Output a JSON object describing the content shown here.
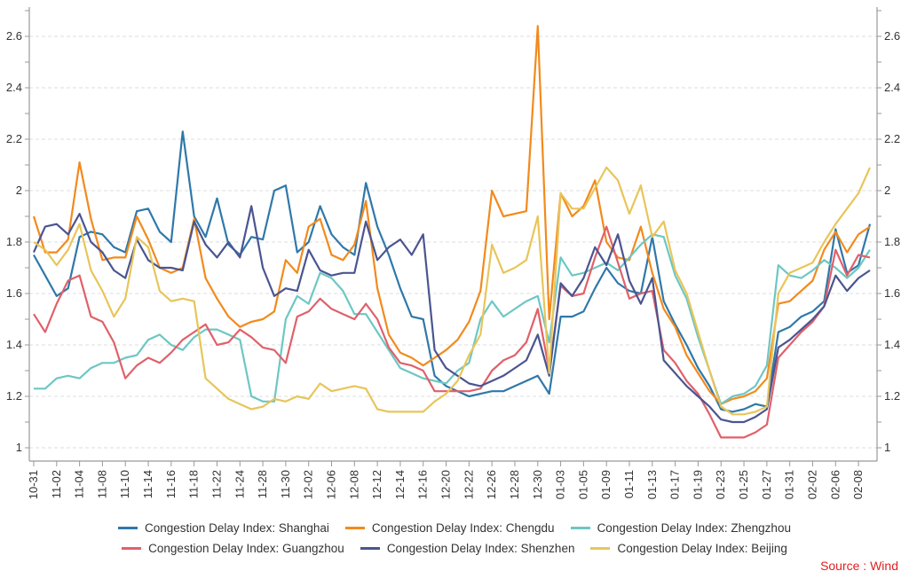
{
  "chart_data": {
    "type": "line",
    "title": "",
    "xlabel": "",
    "ylabel": "",
    "ylim": [
      1,
      2.6
    ],
    "yticks": [
      1,
      1.2,
      1.4,
      1.6,
      1.8,
      2,
      2.2,
      2.4,
      2.6
    ],
    "ytick_labels": [
      "1",
      "1.2",
      "1.4",
      "1.6",
      "1.8",
      "2",
      "2.2",
      "2.4",
      "2.6"
    ],
    "grid": "horizontal-dashed",
    "dual_y_axis": true,
    "n_points": 74,
    "x_tick_labels": [
      "10-31",
      "11-02",
      "11-04",
      "11-08",
      "11-10",
      "11-14",
      "11-16",
      "11-18",
      "11-22",
      "11-24",
      "11-28",
      "11-30",
      "12-02",
      "12-06",
      "12-08",
      "12-12",
      "12-14",
      "12-16",
      "12-20",
      "12-22",
      "12-26",
      "12-28",
      "12-30",
      "01-03",
      "01-05",
      "01-09",
      "01-11",
      "01-13",
      "01-17",
      "01-19",
      "01-23",
      "01-25",
      "01-27",
      "01-31",
      "02-02",
      "02-06",
      "02-08"
    ],
    "x_tick_every": 2,
    "legend_position": "bottom",
    "series": [
      {
        "name": "Congestion Delay Index: Shanghai",
        "color": "#2f78a9",
        "values": [
          1.75,
          1.67,
          1.59,
          1.62,
          1.82,
          1.84,
          1.83,
          1.78,
          1.76,
          1.92,
          1.93,
          1.84,
          1.8,
          2.23,
          1.9,
          1.82,
          1.97,
          1.79,
          1.75,
          1.82,
          1.81,
          2.0,
          2.02,
          1.76,
          1.8,
          1.94,
          1.83,
          1.78,
          1.75,
          2.03,
          1.86,
          1.75,
          1.62,
          1.51,
          1.5,
          1.28,
          1.24,
          1.22,
          1.2,
          1.21,
          1.22,
          1.22,
          1.24,
          1.26,
          1.28,
          1.21,
          1.51,
          1.51,
          1.53,
          1.62,
          1.7,
          1.64,
          1.61,
          1.6,
          1.82,
          1.57,
          1.48,
          1.4,
          1.31,
          1.24,
          1.15,
          1.14,
          1.15,
          1.17,
          1.16,
          1.45,
          1.47,
          1.51,
          1.53,
          1.57,
          1.85,
          1.68,
          1.71,
          1.87
        ]
      },
      {
        "name": "Congestion Delay Index: Chengdu",
        "color": "#f28a1c",
        "values": [
          1.9,
          1.76,
          1.76,
          1.81,
          2.11,
          1.89,
          1.73,
          1.74,
          1.74,
          1.9,
          1.81,
          1.7,
          1.68,
          1.7,
          1.89,
          1.66,
          1.58,
          1.51,
          1.47,
          1.49,
          1.5,
          1.53,
          1.73,
          1.68,
          1.86,
          1.89,
          1.75,
          1.73,
          1.79,
          1.96,
          1.62,
          1.44,
          1.37,
          1.35,
          1.32,
          1.35,
          1.38,
          1.42,
          1.49,
          1.61,
          2.0,
          1.9,
          1.91,
          1.92,
          2.64,
          1.5,
          1.99,
          1.9,
          1.94,
          2.04,
          1.8,
          1.74,
          1.73,
          1.86,
          1.68,
          1.54,
          1.47,
          1.36,
          1.29,
          1.22,
          1.17,
          1.19,
          1.2,
          1.22,
          1.27,
          1.56,
          1.57,
          1.61,
          1.65,
          1.77,
          1.84,
          1.76,
          1.83,
          1.86
        ]
      },
      {
        "name": "Congestion Delay Index: Zhengzhou",
        "color": "#6cc7c4",
        "values": [
          1.23,
          1.23,
          1.27,
          1.28,
          1.27,
          1.31,
          1.33,
          1.33,
          1.35,
          1.36,
          1.42,
          1.44,
          1.4,
          1.38,
          1.43,
          1.46,
          1.46,
          1.44,
          1.42,
          1.2,
          1.18,
          1.18,
          1.5,
          1.59,
          1.56,
          1.68,
          1.66,
          1.61,
          1.52,
          1.52,
          1.45,
          1.38,
          1.31,
          1.29,
          1.27,
          1.26,
          1.25,
          1.3,
          1.33,
          1.5,
          1.57,
          1.51,
          1.54,
          1.57,
          1.59,
          1.41,
          1.74,
          1.67,
          1.68,
          1.7,
          1.72,
          1.69,
          1.74,
          1.79,
          1.83,
          1.82,
          1.67,
          1.58,
          1.43,
          1.3,
          1.17,
          1.2,
          1.21,
          1.24,
          1.32,
          1.71,
          1.67,
          1.66,
          1.69,
          1.73,
          1.7,
          1.66,
          1.7,
          1.77
        ]
      },
      {
        "name": "Congestion Delay Index: Guangzhou",
        "color": "#e0606a",
        "values": [
          1.52,
          1.45,
          1.56,
          1.65,
          1.67,
          1.51,
          1.49,
          1.41,
          1.27,
          1.32,
          1.35,
          1.33,
          1.37,
          1.42,
          1.45,
          1.48,
          1.4,
          1.41,
          1.46,
          1.43,
          1.39,
          1.38,
          1.33,
          1.51,
          1.53,
          1.58,
          1.54,
          1.52,
          1.5,
          1.56,
          1.5,
          1.39,
          1.33,
          1.32,
          1.3,
          1.22,
          1.22,
          1.22,
          1.22,
          1.23,
          1.3,
          1.34,
          1.36,
          1.41,
          1.54,
          1.3,
          1.63,
          1.59,
          1.6,
          1.74,
          1.86,
          1.72,
          1.58,
          1.6,
          1.61,
          1.38,
          1.33,
          1.26,
          1.21,
          1.13,
          1.04,
          1.04,
          1.04,
          1.06,
          1.09,
          1.35,
          1.4,
          1.45,
          1.49,
          1.55,
          1.77,
          1.67,
          1.75,
          1.74
        ]
      },
      {
        "name": "Congestion Delay Index: Shenzhen",
        "color": "#4a5590",
        "values": [
          1.76,
          1.86,
          1.87,
          1.83,
          1.91,
          1.8,
          1.76,
          1.69,
          1.66,
          1.81,
          1.73,
          1.7,
          1.7,
          1.69,
          1.88,
          1.79,
          1.74,
          1.8,
          1.74,
          1.94,
          1.7,
          1.59,
          1.62,
          1.61,
          1.77,
          1.69,
          1.67,
          1.68,
          1.68,
          1.88,
          1.73,
          1.78,
          1.81,
          1.75,
          1.83,
          1.38,
          1.31,
          1.28,
          1.25,
          1.24,
          1.26,
          1.28,
          1.31,
          1.34,
          1.44,
          1.28,
          1.64,
          1.59,
          1.66,
          1.78,
          1.71,
          1.83,
          1.65,
          1.56,
          1.66,
          1.34,
          1.29,
          1.24,
          1.2,
          1.16,
          1.11,
          1.1,
          1.1,
          1.12,
          1.15,
          1.39,
          1.42,
          1.46,
          1.5,
          1.55,
          1.67,
          1.61,
          1.66,
          1.69
        ]
      },
      {
        "name": "Congestion Delay Index: Beijing",
        "color": "#e8c55a",
        "values": [
          1.8,
          1.77,
          1.71,
          1.77,
          1.87,
          1.69,
          1.61,
          1.51,
          1.58,
          1.82,
          1.78,
          1.61,
          1.57,
          1.58,
          1.57,
          1.27,
          1.23,
          1.19,
          1.17,
          1.15,
          1.16,
          1.19,
          1.18,
          1.2,
          1.19,
          1.25,
          1.22,
          1.23,
          1.24,
          1.23,
          1.15,
          1.14,
          1.14,
          1.14,
          1.14,
          1.18,
          1.21,
          1.26,
          1.36,
          1.44,
          1.79,
          1.68,
          1.7,
          1.73,
          1.9,
          1.29,
          1.99,
          1.93,
          1.93,
          2.01,
          2.09,
          2.04,
          1.91,
          2.02,
          1.82,
          1.88,
          1.69,
          1.6,
          1.45,
          1.3,
          1.16,
          1.13,
          1.13,
          1.14,
          1.16,
          1.6,
          1.68,
          1.7,
          1.72,
          1.8,
          1.87,
          1.93,
          1.99,
          2.09
        ]
      }
    ]
  },
  "legend_rows": [
    [
      0,
      1,
      2
    ],
    [
      3,
      4,
      5
    ]
  ],
  "source": "Source : Wind"
}
